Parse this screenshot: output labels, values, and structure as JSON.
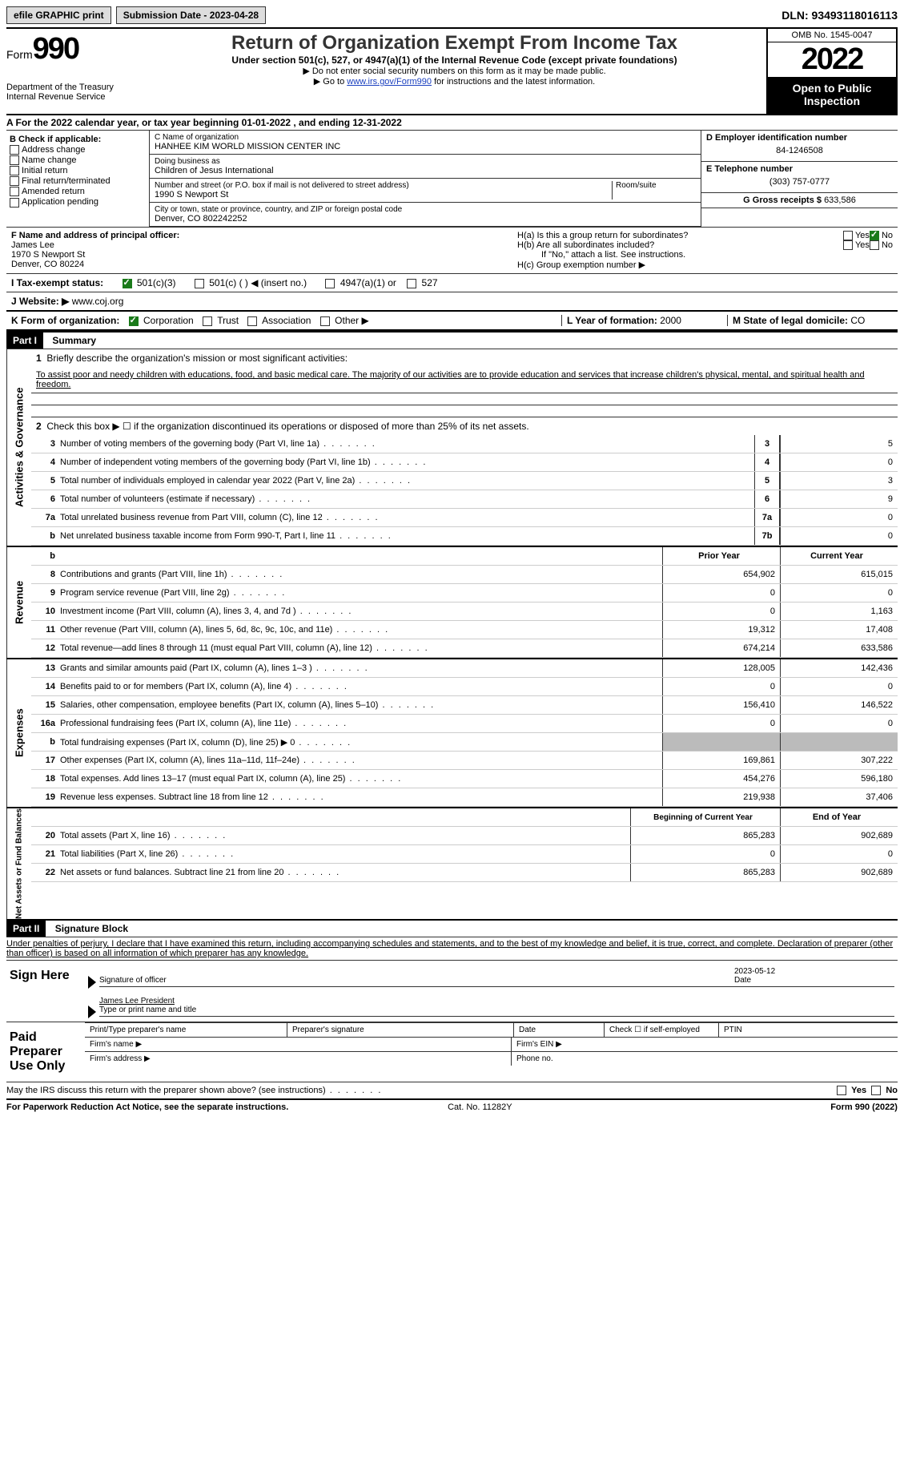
{
  "topbar": {
    "efile": "efile GRAPHIC print",
    "submission": "Submission Date - 2023-04-28",
    "dln": "DLN: 93493118016113"
  },
  "header": {
    "form_prefix": "Form",
    "form_no": "990",
    "title": "Return of Organization Exempt From Income Tax",
    "sub": "Under section 501(c), 527, or 4947(a)(1) of the Internal Revenue Code (except private foundations)",
    "note1": "▶ Do not enter social security numbers on this form as it may be made public.",
    "note2_pre": "▶ Go to ",
    "note2_link": "www.irs.gov/Form990",
    "note2_post": " for instructions and the latest information.",
    "omb": "OMB No. 1545-0047",
    "year": "2022",
    "oti": "Open to Public Inspection",
    "dept": "Department of the Treasury Internal Revenue Service"
  },
  "period": {
    "text": "A For the 2022 calendar year, or tax year beginning 01-01-2022   , and ending 12-31-2022"
  },
  "boxB": {
    "hdr": "B Check if applicable:",
    "items": [
      "Address change",
      "Name change",
      "Initial return",
      "Final return/terminated",
      "Amended return",
      "Application pending"
    ]
  },
  "boxC": {
    "lbl": "C Name of organization",
    "name": "HANHEE KIM WORLD MISSION CENTER INC",
    "dba_lbl": "Doing business as",
    "dba": "Children of Jesus International",
    "street_lbl": "Number and street (or P.O. box if mail is not delivered to street address)",
    "room_lbl": "Room/suite",
    "street": "1990 S Newport St",
    "city_lbl": "City or town, state or province, country, and ZIP or foreign postal code",
    "city": "Denver, CO  802242252"
  },
  "boxD": {
    "lbl": "D Employer identification number",
    "val": "84-1246508"
  },
  "boxE": {
    "lbl": "E Telephone number",
    "val": "(303) 757-0777"
  },
  "boxG": {
    "lbl": "G Gross receipts $",
    "val": "633,586"
  },
  "boxF": {
    "lbl": "F  Name and address of principal officer:",
    "name": "James Lee",
    "street": "1970 S Newport St",
    "city": "Denver, CO  80224"
  },
  "boxH": {
    "a": "H(a)  Is this a group return for subordinates?",
    "b": "H(b)  Are all subordinates included?",
    "b_note": "If \"No,\" attach a list. See instructions.",
    "c": "H(c)  Group exemption number ▶",
    "yes": "Yes",
    "no": "No"
  },
  "boxI": {
    "lbl": "I   Tax-exempt status:",
    "items": [
      "501(c)(3)",
      "501(c) (  ) ◀ (insert no.)",
      "4947(a)(1) or",
      "527"
    ]
  },
  "boxJ": {
    "lbl": "J   Website: ▶",
    "val": "  www.coj.org"
  },
  "boxK": {
    "lbl": "K Form of organization:",
    "items": [
      "Corporation",
      "Trust",
      "Association",
      "Other ▶"
    ]
  },
  "boxL": {
    "lbl": "L Year of formation:",
    "val": "2000"
  },
  "boxM": {
    "lbl": "M State of legal domicile:",
    "val": "CO"
  },
  "part1": {
    "hdr": "Part I",
    "title": "Summary",
    "l1_lbl": "Briefly describe the organization's mission or most significant activities:",
    "mission": "To assist poor and needy children with educations, food, and basic medical care. The majority of our activities are to provide education and services that increase children's physical, mental, and spiritual health and freedom.",
    "l2": "Check this box ▶ ☐ if the organization discontinued its operations or disposed of more than 25% of its net assets.",
    "rows": [
      {
        "n": "3",
        "d": "Number of voting members of the governing body (Part VI, line 1a)",
        "box": "3",
        "val": "5"
      },
      {
        "n": "4",
        "d": "Number of independent voting members of the governing body (Part VI, line 1b)",
        "box": "4",
        "val": "0"
      },
      {
        "n": "5",
        "d": "Total number of individuals employed in calendar year 2022 (Part V, line 2a)",
        "box": "5",
        "val": "3"
      },
      {
        "n": "6",
        "d": "Total number of volunteers (estimate if necessary)",
        "box": "6",
        "val": "9"
      },
      {
        "n": "7a",
        "d": "Total unrelated business revenue from Part VIII, column (C), line 12",
        "box": "7a",
        "val": "0"
      },
      {
        "n": "b",
        "d": "Net unrelated business taxable income from Form 990-T, Part I, line 11",
        "box": "7b",
        "val": "0"
      }
    ],
    "tab1": "Activities & Governance",
    "col_prior": "Prior Year",
    "col_current": "Current Year",
    "revenue": {
      "tab": "Revenue",
      "rows": [
        {
          "n": "8",
          "d": "Contributions and grants (Part VIII, line 1h)",
          "p": "654,902",
          "c": "615,015"
        },
        {
          "n": "9",
          "d": "Program service revenue (Part VIII, line 2g)",
          "p": "0",
          "c": "0"
        },
        {
          "n": "10",
          "d": "Investment income (Part VIII, column (A), lines 3, 4, and 7d )",
          "p": "0",
          "c": "1,163"
        },
        {
          "n": "11",
          "d": "Other revenue (Part VIII, column (A), lines 5, 6d, 8c, 9c, 10c, and 11e)",
          "p": "19,312",
          "c": "17,408"
        },
        {
          "n": "12",
          "d": "Total revenue—add lines 8 through 11 (must equal Part VIII, column (A), line 12)",
          "p": "674,214",
          "c": "633,586"
        }
      ]
    },
    "expenses": {
      "tab": "Expenses",
      "rows": [
        {
          "n": "13",
          "d": "Grants and similar amounts paid (Part IX, column (A), lines 1–3 )",
          "p": "128,005",
          "c": "142,436"
        },
        {
          "n": "14",
          "d": "Benefits paid to or for members (Part IX, column (A), line 4)",
          "p": "0",
          "c": "0"
        },
        {
          "n": "15",
          "d": "Salaries, other compensation, employee benefits (Part IX, column (A), lines 5–10)",
          "p": "156,410",
          "c": "146,522"
        },
        {
          "n": "16a",
          "d": "Professional fundraising fees (Part IX, column (A), line 11e)",
          "p": "0",
          "c": "0"
        },
        {
          "n": "b",
          "d": "Total fundraising expenses (Part IX, column (D), line 25) ▶ 0",
          "p": "",
          "c": "",
          "shaded": true
        },
        {
          "n": "17",
          "d": "Other expenses (Part IX, column (A), lines 11a–11d, 11f–24e)",
          "p": "169,861",
          "c": "307,222"
        },
        {
          "n": "18",
          "d": "Total expenses. Add lines 13–17 (must equal Part IX, column (A), line 25)",
          "p": "454,276",
          "c": "596,180"
        },
        {
          "n": "19",
          "d": "Revenue less expenses. Subtract line 18 from line 12",
          "p": "219,938",
          "c": "37,406"
        }
      ]
    },
    "col_begin": "Beginning of Current Year",
    "col_end": "End of Year",
    "netassets": {
      "tab": "Net Assets or Fund Balances",
      "rows": [
        {
          "n": "20",
          "d": "Total assets (Part X, line 16)",
          "p": "865,283",
          "c": "902,689"
        },
        {
          "n": "21",
          "d": "Total liabilities (Part X, line 26)",
          "p": "0",
          "c": "0"
        },
        {
          "n": "22",
          "d": "Net assets or fund balances. Subtract line 21 from line 20",
          "p": "865,283",
          "c": "902,689"
        }
      ]
    }
  },
  "part2": {
    "hdr": "Part II",
    "title": "Signature Block",
    "decl": "Under penalties of perjury, I declare that I have examined this return, including accompanying schedules and statements, and to the best of my knowledge and belief, it is true, correct, and complete. Declaration of preparer (other than officer) is based on all information of which preparer has any knowledge.",
    "sign_here": "Sign Here",
    "sig_officer": "Signature of officer",
    "sig_date": "2023-05-12",
    "date_lbl": "Date",
    "sig_name": "James Lee  President",
    "sig_name_lbl": "Type or print name and title",
    "paid": "Paid Preparer Use Only",
    "prep": {
      "name": "Print/Type preparer's name",
      "sig": "Preparer's signature",
      "date": "Date",
      "check": "Check ☐ if self-employed",
      "ptin": "PTIN",
      "firm_name": "Firm's name  ▶",
      "firm_ein": "Firm's EIN ▶",
      "firm_addr": "Firm's address ▶",
      "phone": "Phone no."
    },
    "may": "May the IRS discuss this return with the preparer shown above? (see instructions)",
    "yes": "Yes",
    "no": "No"
  },
  "footer": {
    "l": "For Paperwork Reduction Act Notice, see the separate instructions.",
    "m": "Cat. No. 11282Y",
    "r": "Form 990 (2022)"
  }
}
